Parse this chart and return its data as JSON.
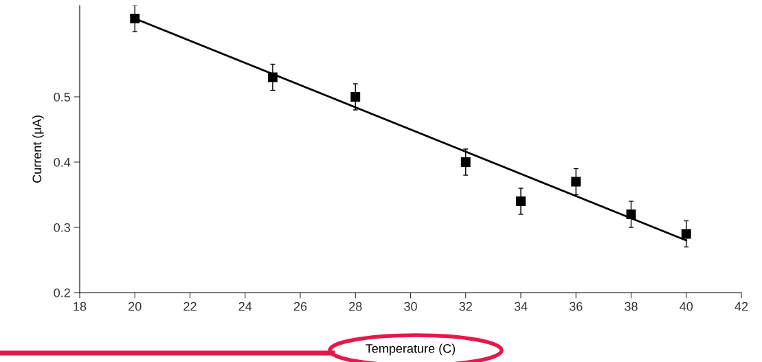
{
  "chart_data": {
    "type": "scatter",
    "xlabel": "Temperature (C)",
    "ylabel": "Current (μA)",
    "xlim": [
      18,
      42
    ],
    "xticks": [
      18,
      20,
      22,
      24,
      26,
      28,
      30,
      32,
      34,
      36,
      38,
      40,
      42
    ],
    "ylim": [
      0.2,
      0.64
    ],
    "yticks": [
      0.2,
      0.3,
      0.4,
      0.5
    ],
    "series": [
      {
        "color": "#000000",
        "marker": "square",
        "x": [
          20,
          25,
          28,
          32,
          34,
          36,
          38,
          40
        ],
        "values": [
          0.62,
          0.53,
          0.5,
          0.4,
          0.34,
          0.37,
          0.32,
          0.29
        ],
        "errors": [
          0.02,
          0.02,
          0.02,
          0.02,
          0.02,
          0.02,
          0.02,
          0.02
        ]
      },
      {
        "type": "line",
        "color": "#000000",
        "x": [
          20,
          40
        ],
        "values": [
          0.62,
          0.28
        ]
      }
    ]
  }
}
